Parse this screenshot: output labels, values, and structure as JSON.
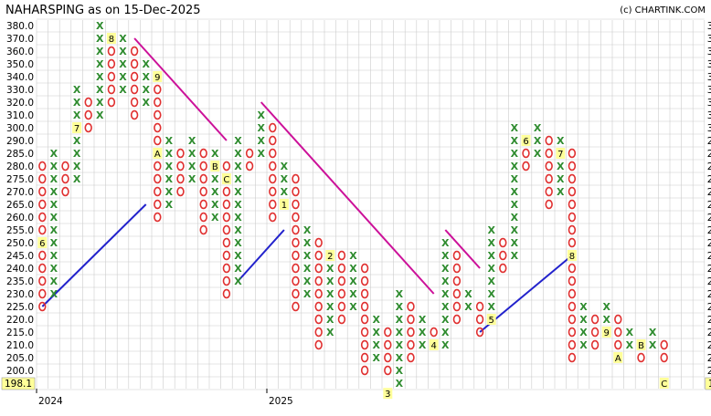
{
  "header": {
    "title": "NAHARSPING as on 15-Dec-2025",
    "credit": "(c) CHARTINK.COM"
  },
  "chart_data": {
    "type": "point-and-figure",
    "ylim": [
      198.1,
      380.0
    ],
    "y_ticks": [
      380.0,
      370.0,
      360.0,
      350.0,
      340.0,
      330.0,
      320.0,
      310.0,
      300.0,
      290.0,
      285.0,
      280.0,
      275.0,
      270.0,
      265.0,
      260.0,
      255.0,
      250.0,
      245.0,
      240.0,
      235.0,
      230.0,
      225.0,
      220.0,
      215.0,
      210.0,
      205.0,
      200.0
    ],
    "current_price_label": "198.1",
    "x_labels": [
      {
        "col": 0,
        "text": "2024"
      },
      {
        "col": 20,
        "text": "2025"
      }
    ],
    "colors": {
      "x": "#2e8b2e",
      "o": "#e03030",
      "marker_bg": "#ffff99",
      "trend_up": "#2222cc",
      "trend_down": "#cc1199",
      "grid": "#cccccc"
    },
    "columns": [
      {
        "col": 0,
        "type": "O",
        "from": 280,
        "to": 225,
        "markers": [
          {
            "level": 250,
            "text": "6"
          }
        ]
      },
      {
        "col": 1,
        "type": "X",
        "from": 230,
        "to": 285
      },
      {
        "col": 2,
        "type": "O",
        "from": 280,
        "to": 270
      },
      {
        "col": 3,
        "type": "X",
        "from": 275,
        "to": 330,
        "markers": [
          {
            "level": 300,
            "text": "7"
          }
        ]
      },
      {
        "col": 4,
        "type": "O",
        "from": 320,
        "to": 300
      },
      {
        "col": 5,
        "type": "X",
        "from": 310,
        "to": 380
      },
      {
        "col": 6,
        "type": "O",
        "from": 370,
        "to": 320,
        "markers": [
          {
            "level": 370,
            "text": "8"
          }
        ]
      },
      {
        "col": 7,
        "type": "X",
        "from": 330,
        "to": 370
      },
      {
        "col": 8,
        "type": "O",
        "from": 360,
        "to": 310
      },
      {
        "col": 9,
        "type": "X",
        "from": 320,
        "to": 350
      },
      {
        "col": 10,
        "type": "O",
        "from": 340,
        "to": 260,
        "markers": [
          {
            "level": 340,
            "text": "9"
          },
          {
            "level": 285,
            "text": "A"
          }
        ]
      },
      {
        "col": 11,
        "type": "X",
        "from": 265,
        "to": 290
      },
      {
        "col": 12,
        "type": "O",
        "from": 285,
        "to": 270
      },
      {
        "col": 13,
        "type": "X",
        "from": 275,
        "to": 290
      },
      {
        "col": 14,
        "type": "O",
        "from": 285,
        "to": 255
      },
      {
        "col": 15,
        "type": "X",
        "from": 260,
        "to": 285,
        "markers": [
          {
            "level": 280,
            "text": "B"
          }
        ]
      },
      {
        "col": 16,
        "type": "O",
        "from": 280,
        "to": 230,
        "markers": [
          {
            "level": 275,
            "text": "C"
          }
        ]
      },
      {
        "col": 17,
        "type": "X",
        "from": 235,
        "to": 290
      },
      {
        "col": 18,
        "type": "O",
        "from": 285,
        "to": 280
      },
      {
        "col": 19,
        "type": "X",
        "from": 285,
        "to": 310
      },
      {
        "col": 20,
        "type": "O",
        "from": 300,
        "to": 260
      },
      {
        "col": 21,
        "type": "X",
        "from": 265,
        "to": 280,
        "markers": [
          {
            "level": 265,
            "text": "1"
          }
        ]
      },
      {
        "col": 22,
        "type": "O",
        "from": 275,
        "to": 225
      },
      {
        "col": 23,
        "type": "X",
        "from": 230,
        "to": 255
      },
      {
        "col": 24,
        "type": "O",
        "from": 250,
        "to": 210
      },
      {
        "col": 25,
        "type": "X",
        "from": 215,
        "to": 245,
        "markers": [
          {
            "level": 245,
            "text": "2"
          }
        ]
      },
      {
        "col": 26,
        "type": "O",
        "from": 245,
        "to": 220
      },
      {
        "col": 27,
        "type": "X",
        "from": 225,
        "to": 245
      },
      {
        "col": 28,
        "type": "O",
        "from": 240,
        "to": 200
      },
      {
        "col": 29,
        "type": "X",
        "from": 205,
        "to": 220
      },
      {
        "col": 30,
        "type": "O",
        "from": 215,
        "to": 200,
        "markers": [
          {
            "level": 195,
            "text": "3"
          }
        ]
      },
      {
        "col": 31,
        "type": "X",
        "from": 195,
        "to": 230
      },
      {
        "col": 32,
        "type": "O",
        "from": 225,
        "to": 205
      },
      {
        "col": 33,
        "type": "X",
        "from": 210,
        "to": 220
      },
      {
        "col": 34,
        "type": "O",
        "from": 215,
        "to": 210,
        "markers": [
          {
            "level": 210,
            "text": "4"
          }
        ]
      },
      {
        "col": 35,
        "type": "X",
        "from": 210,
        "to": 250
      },
      {
        "col": 36,
        "type": "O",
        "from": 245,
        "to": 220
      },
      {
        "col": 37,
        "type": "X",
        "from": 225,
        "to": 230
      },
      {
        "col": 38,
        "type": "O",
        "from": 225,
        "to": 215
      },
      {
        "col": 39,
        "type": "X",
        "from": 220,
        "to": 255,
        "markers": [
          {
            "level": 220,
            "text": "5"
          }
        ]
      },
      {
        "col": 40,
        "type": "O",
        "from": 250,
        "to": 240
      },
      {
        "col": 41,
        "type": "X",
        "from": 245,
        "to": 300
      },
      {
        "col": 42,
        "type": "O",
        "from": 290,
        "to": 280,
        "markers": [
          {
            "level": 290,
            "text": "6"
          }
        ]
      },
      {
        "col": 43,
        "type": "X",
        "from": 285,
        "to": 300
      },
      {
        "col": 44,
        "type": "O",
        "from": 290,
        "to": 265
      },
      {
        "col": 45,
        "type": "X",
        "from": 270,
        "to": 290,
        "markers": [
          {
            "level": 285,
            "text": "7"
          }
        ]
      },
      {
        "col": 46,
        "type": "O",
        "from": 285,
        "to": 205,
        "markers": [
          {
            "level": 245,
            "text": "8"
          }
        ]
      },
      {
        "col": 47,
        "type": "X",
        "from": 210,
        "to": 225
      },
      {
        "col": 48,
        "type": "O",
        "from": 220,
        "to": 210
      },
      {
        "col": 49,
        "type": "X",
        "from": 215,
        "to": 225,
        "markers": [
          {
            "level": 215,
            "text": "9"
          }
        ]
      },
      {
        "col": 50,
        "type": "O",
        "from": 220,
        "to": 205,
        "markers": [
          {
            "level": 205,
            "text": "A"
          }
        ]
      },
      {
        "col": 51,
        "type": "X",
        "from": 210,
        "to": 215
      },
      {
        "col": 52,
        "type": "O",
        "from": 210,
        "to": 205,
        "markers": [
          {
            "level": 210,
            "text": "B"
          }
        ]
      },
      {
        "col": 53,
        "type": "X",
        "from": 210,
        "to": 215
      },
      {
        "col": 54,
        "type": "O",
        "from": 210,
        "to": 205,
        "markers": [
          {
            "level": 198.1,
            "text": "C"
          }
        ]
      }
    ],
    "trendlines": [
      {
        "kind": "up",
        "from": {
          "col": 0,
          "level": 225
        },
        "to": {
          "col": 9,
          "level": 265
        }
      },
      {
        "kind": "down",
        "from": {
          "col": 8,
          "level": 370
        },
        "to": {
          "col": 16,
          "level": 290
        }
      },
      {
        "kind": "up",
        "from": {
          "col": 17,
          "level": 235
        },
        "to": {
          "col": 21,
          "level": 255
        }
      },
      {
        "kind": "down",
        "from": {
          "col": 19,
          "level": 320
        },
        "to": {
          "col": 34,
          "level": 230
        }
      },
      {
        "kind": "down",
        "from": {
          "col": 35,
          "level": 255
        },
        "to": {
          "col": 38,
          "level": 240
        }
      },
      {
        "kind": "up",
        "from": {
          "col": 38,
          "level": 215
        },
        "to": {
          "col": 46,
          "level": 245
        }
      }
    ]
  }
}
